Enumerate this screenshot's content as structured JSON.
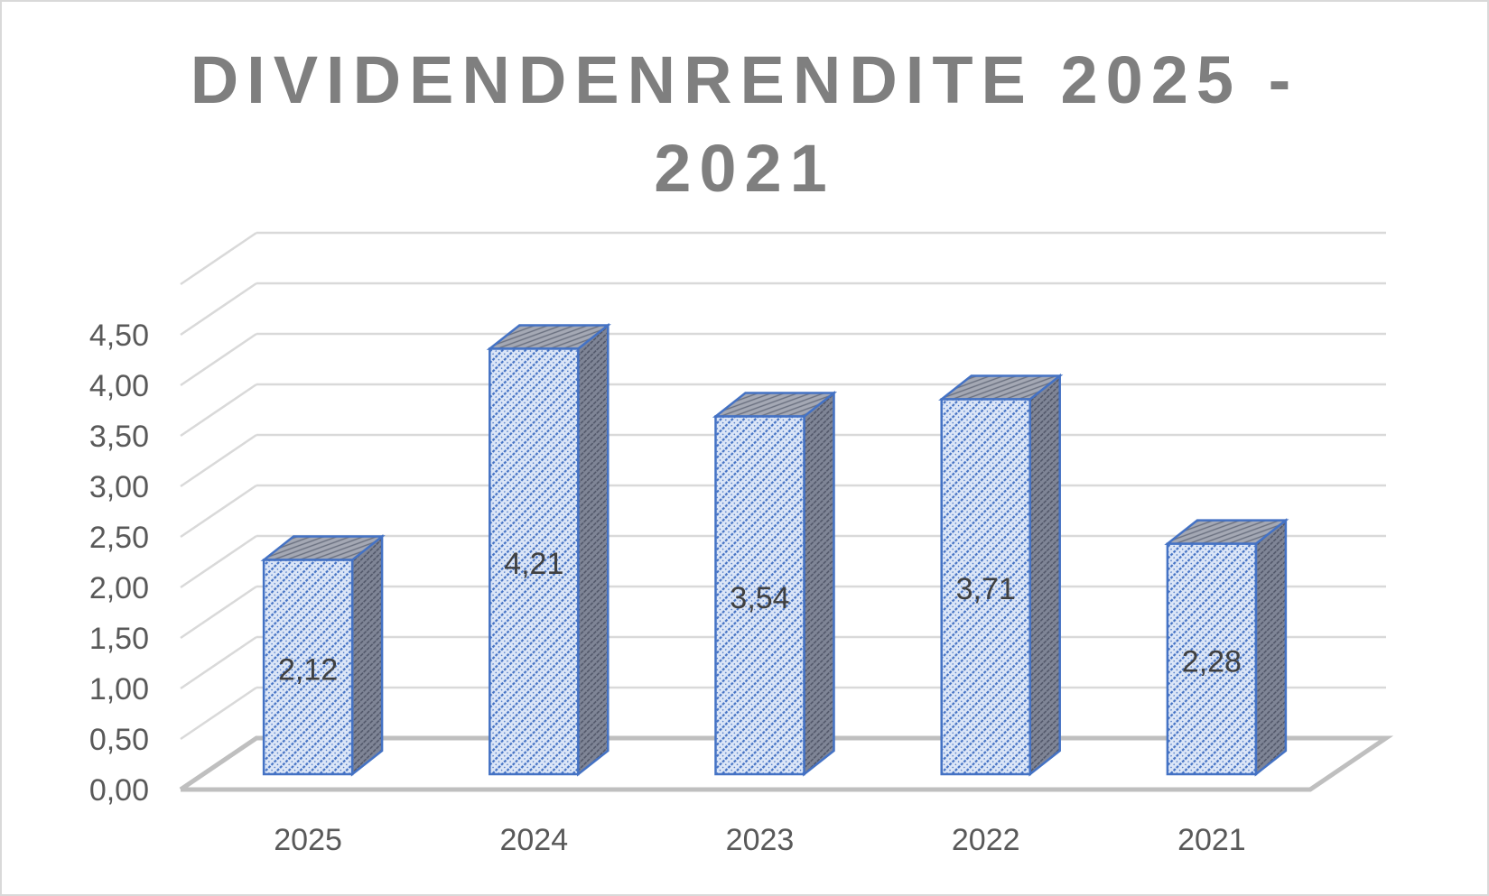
{
  "chart_data": {
    "type": "bar",
    "title_lines": [
      "DIVIDENDENRENDITE 2025 -",
      "2021"
    ],
    "categories": [
      "2025",
      "2024",
      "2023",
      "2022",
      "2021"
    ],
    "values": [
      2.12,
      4.21,
      3.54,
      3.71,
      2.28
    ],
    "value_labels": [
      "2,12",
      "4,21",
      "3,54",
      "3,71",
      "2,28"
    ],
    "y_ticks": [
      "0,00",
      "0,50",
      "1,00",
      "1,50",
      "2,00",
      "2,50",
      "3,00",
      "3,50",
      "4,00",
      "4,50"
    ],
    "ylim": [
      0,
      5
    ],
    "xlabel": "",
    "ylabel": "",
    "grid": true,
    "legend": "none",
    "style": "3d-column",
    "colors": {
      "bar_front": "#dce6f7",
      "bar_pattern": "#4472c4",
      "bar_top": "#a5a5a5",
      "bar_side": "#808080",
      "bar_edge": "#4472c4",
      "gridline": "#d9d9d9",
      "floor": "#bfbfbf",
      "axis_text": "#595959",
      "title": "#7f7f7f",
      "value_label": "#404040"
    }
  }
}
